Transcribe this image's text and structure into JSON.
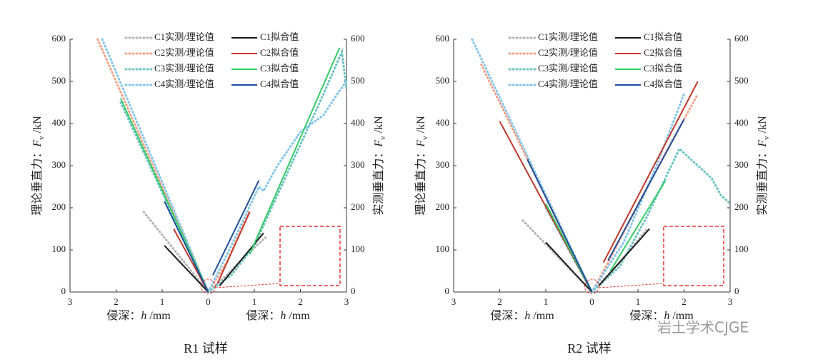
{
  "chart_data": [
    {
      "type": "line",
      "caption": "R1 试样",
      "y_label": {
        "text": "理论垂直力：",
        "var": "F",
        "sub": "v",
        "unit": " /kN"
      },
      "y2_label": {
        "text": "实测垂直力：",
        "var": "F",
        "sub": "v",
        "unit": " /kN"
      },
      "x_label": {
        "text": "侵深：",
        "var": "h",
        "unit": " /mm"
      },
      "xlim": [
        -3,
        3
      ],
      "xticks": [
        {
          "value": -3,
          "label": "3"
        },
        {
          "value": -2,
          "label": "2"
        },
        {
          "value": -1,
          "label": "1"
        },
        0,
        1,
        2,
        3
      ],
      "ylim": [
        0,
        600
      ],
      "yticks": [
        0,
        100,
        200,
        300,
        400,
        500,
        600
      ],
      "y2lim": [
        0,
        600
      ],
      "y2ticks": [
        0,
        100,
        200,
        300,
        400,
        500,
        600
      ],
      "series": [
        {
          "name": "C1实测/理论值",
          "color": "#b3b3b3",
          "dash": "dotted",
          "x": [
            -1.4,
            0,
            null,
            0,
            0.4,
            0.8,
            1.25
          ],
          "values": [
            190,
            0,
            null,
            0,
            40,
            85,
            130
          ]
        },
        {
          "name": "C2实测/理论值",
          "color": "#f5a083",
          "dash": "dotted",
          "x": [
            -2.4,
            0,
            null,
            0,
            0.4,
            0.9
          ],
          "values": [
            600,
            0,
            null,
            0,
            70,
            195
          ]
        },
        {
          "name": "C3实测/理论值",
          "color": "#6cc3c1",
          "dash": "dotted",
          "x": [
            -1.9,
            0,
            null,
            0,
            0.5,
            1,
            1.5,
            2,
            2.5,
            2.9,
            3
          ],
          "values": [
            450,
            0,
            null,
            0,
            40,
            110,
            230,
            350,
            470,
            570,
            480
          ]
        },
        {
          "name": "C4实测/理论值",
          "color": "#82c5ec",
          "dash": "dotted",
          "x": [
            -2.3,
            0,
            null,
            0,
            0.5,
            1.1,
            1.2,
            1.5,
            2,
            2.5,
            2.8,
            3
          ],
          "values": [
            600,
            0,
            null,
            0,
            110,
            250,
            240,
            300,
            380,
            420,
            470,
            500
          ]
        },
        {
          "name": "C1拟合值",
          "color": "#1a1a1a",
          "dash": "solid",
          "x": [
            -0.95,
            0,
            null,
            0.25,
            1.2
          ],
          "values": [
            110,
            0,
            null,
            15,
            140
          ]
        },
        {
          "name": "C2拟合值",
          "color": "#c0392b",
          "dash": "solid",
          "x": [
            -0.75,
            0,
            null,
            0.2,
            0.9
          ],
          "values": [
            150,
            0,
            null,
            20,
            190
          ]
        },
        {
          "name": "C3拟合值",
          "color": "#33cc66",
          "dash": "solid",
          "x": [
            -1.9,
            0,
            null,
            0.9,
            2.85
          ],
          "values": [
            460,
            0,
            null,
            90,
            580
          ]
        },
        {
          "name": "C4拟合值",
          "color": "#1f4e9c",
          "dash": "solid",
          "x": [
            -0.95,
            0,
            null,
            0.1,
            1.1
          ],
          "values": [
            215,
            0,
            null,
            40,
            265
          ]
        }
      ]
    },
    {
      "type": "line",
      "caption": "R2 试样",
      "y_label": {
        "text": "理论垂直力：",
        "var": "F",
        "sub": "v",
        "unit": " /kN"
      },
      "y2_label": {
        "text": "实测垂直力：",
        "var": "F",
        "sub": "v",
        "unit": " /kN"
      },
      "x_label": {
        "text": "侵深：",
        "var": "h",
        "unit": " /mm"
      },
      "xlim": [
        -3,
        3
      ],
      "xticks": [
        {
          "value": -3,
          "label": "3"
        },
        {
          "value": -2,
          "label": "2"
        },
        {
          "value": -1,
          "label": "1"
        },
        0,
        1,
        2,
        3
      ],
      "ylim": [
        0,
        600
      ],
      "yticks": [
        0,
        100,
        200,
        300,
        400,
        500,
        600
      ],
      "y2lim": [
        0,
        600
      ],
      "y2ticks": [
        0,
        100,
        200,
        300,
        400,
        500,
        600
      ],
      "series": [
        {
          "name": "C1实测/理论值",
          "color": "#b3b3b3",
          "dash": "dotted",
          "x": [
            -1.5,
            0,
            null,
            0,
            0.6,
            1.2
          ],
          "values": [
            170,
            0,
            null,
            0,
            70,
            150
          ]
        },
        {
          "name": "C2实测/理论值",
          "color": "#f5a083",
          "dash": "dotted",
          "x": [
            -2.4,
            0,
            null,
            0,
            0.4,
            1.2,
            2.3
          ],
          "values": [
            540,
            0,
            null,
            0,
            80,
            250,
            470
          ]
        },
        {
          "name": "C3实测/理论值",
          "color": "#6cc3c1",
          "dash": "dotted",
          "x": [
            -1.0,
            0,
            null,
            0,
            0.6,
            1.2,
            1.9,
            2.3,
            2.6,
            2.8,
            3
          ],
          "values": [
            200,
            0,
            null,
            0,
            60,
            180,
            340,
            300,
            270,
            230,
            210
          ]
        },
        {
          "name": "C4实测/理论值",
          "color": "#82c5ec",
          "dash": "dotted",
          "x": [
            -2.6,
            0,
            null,
            0,
            0.7,
            1.4,
            2
          ],
          "values": [
            600,
            0,
            null,
            0,
            120,
            300,
            470
          ]
        },
        {
          "name": "C1拟合值",
          "color": "#1a1a1a",
          "dash": "solid",
          "x": [
            -1.0,
            0,
            null,
            0.15,
            1.25
          ],
          "values": [
            118,
            0,
            null,
            15,
            150
          ]
        },
        {
          "name": "C2拟合值",
          "color": "#c0392b",
          "dash": "solid",
          "x": [
            -2.0,
            0,
            null,
            0.25,
            2.3
          ],
          "values": [
            405,
            0,
            null,
            70,
            500
          ]
        },
        {
          "name": "C3拟合值",
          "color": "#33cc66",
          "dash": "solid",
          "x": [
            -1.0,
            0,
            null,
            0.4,
            1.6
          ],
          "values": [
            210,
            0,
            null,
            50,
            265
          ]
        },
        {
          "name": "C4拟合值",
          "color": "#1f4e9c",
          "dash": "solid",
          "x": [
            -1.4,
            0,
            null,
            0.35,
            2.0
          ],
          "values": [
            315,
            0,
            null,
            75,
            410
          ]
        }
      ]
    }
  ],
  "watermark": "岩土学术CJGE"
}
